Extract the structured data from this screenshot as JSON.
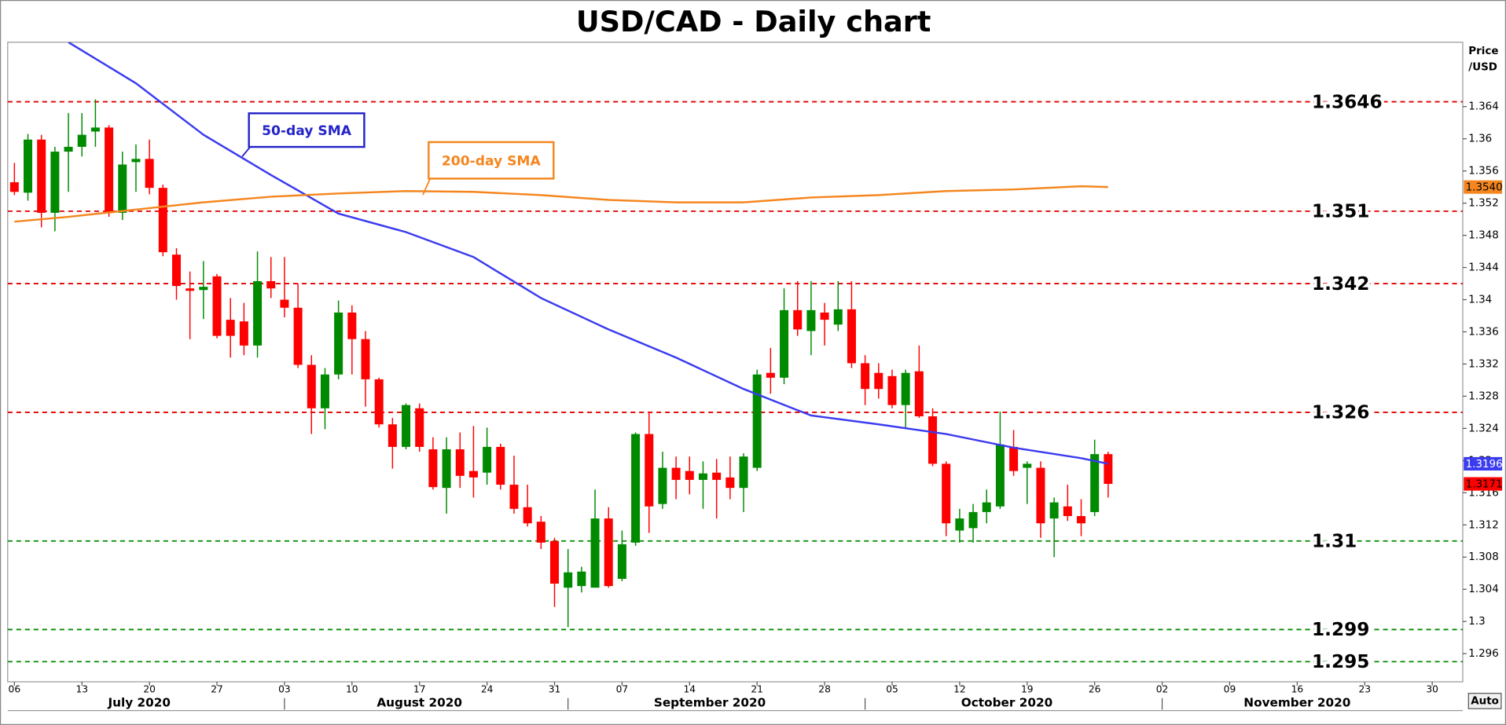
{
  "chart_data": {
    "type": "candlestick",
    "title": "USD/CAD - Daily chart",
    "y_axis_label": [
      "Price",
      "/USD"
    ],
    "auto_button": "Auto",
    "up_color": "#008a00",
    "down_color": "#ff0000",
    "x": [
      "2020-07-06",
      "2020-07-07",
      "2020-07-08",
      "2020-07-09",
      "2020-07-10",
      "2020-07-13",
      "2020-07-14",
      "2020-07-15",
      "2020-07-16",
      "2020-07-17",
      "2020-07-20",
      "2020-07-21",
      "2020-07-22",
      "2020-07-23",
      "2020-07-24",
      "2020-07-27",
      "2020-07-28",
      "2020-07-29",
      "2020-07-30",
      "2020-07-31",
      "2020-08-03",
      "2020-08-04",
      "2020-08-05",
      "2020-08-06",
      "2020-08-07",
      "2020-08-10",
      "2020-08-11",
      "2020-08-12",
      "2020-08-13",
      "2020-08-14",
      "2020-08-17",
      "2020-08-18",
      "2020-08-19",
      "2020-08-20",
      "2020-08-21",
      "2020-08-24",
      "2020-08-25",
      "2020-08-26",
      "2020-08-27",
      "2020-08-28",
      "2020-08-31",
      "2020-09-01",
      "2020-09-02",
      "2020-09-03",
      "2020-09-04",
      "2020-09-07",
      "2020-09-08",
      "2020-09-09",
      "2020-09-10",
      "2020-09-11",
      "2020-09-14",
      "2020-09-15",
      "2020-09-16",
      "2020-09-17",
      "2020-09-18",
      "2020-09-21",
      "2020-09-22",
      "2020-09-23",
      "2020-09-24",
      "2020-09-25",
      "2020-09-28",
      "2020-09-29",
      "2020-09-30",
      "2020-10-01",
      "2020-10-02",
      "2020-10-05",
      "2020-10-06",
      "2020-10-07",
      "2020-10-08",
      "2020-10-09",
      "2020-10-12",
      "2020-10-13",
      "2020-10-14",
      "2020-10-15",
      "2020-10-16",
      "2020-10-19",
      "2020-10-20",
      "2020-10-21",
      "2020-10-22",
      "2020-10-23",
      "2020-10-26",
      "2020-10-27"
    ],
    "open": [
      1.3546,
      1.3533,
      1.3599,
      1.3508,
      1.3584,
      1.359,
      1.3609,
      1.3614,
      1.3508,
      1.3571,
      1.3575,
      1.3539,
      1.3456,
      1.3414,
      1.3412,
      1.3429,
      1.3375,
      1.3373,
      1.3343,
      1.3423,
      1.34,
      1.339,
      1.3319,
      1.3265,
      1.3307,
      1.3384,
      1.3351,
      1.3301,
      1.3245,
      1.3217,
      1.3265,
      1.3214,
      1.3166,
      1.3214,
      1.3187,
      1.3185,
      1.3217,
      1.317,
      1.3142,
      1.3124,
      1.31,
      1.3042,
      1.3044,
      1.3042,
      1.3128,
      1.3053,
      1.3098,
      1.3233,
      1.3146,
      1.3191,
      1.3187,
      1.3176,
      1.3185,
      1.3179,
      1.3166,
      1.3191,
      1.3309,
      1.3303,
      1.3387,
      1.3361,
      1.3384,
      1.3369,
      1.3388,
      1.3321,
      1.3309,
      1.3305,
      1.3269,
      1.3311,
      1.3255,
      1.3196,
      1.3113,
      1.3116,
      1.3136,
      1.3143,
      1.3217,
      1.3191,
      1.3191,
      1.3128,
      1.3143,
      1.3131,
      1.3136,
      1.3208
    ],
    "high": [
      1.357,
      1.3606,
      1.3605,
      1.359,
      1.3632,
      1.3632,
      1.3649,
      1.3617,
      1.3584,
      1.3593,
      1.3599,
      1.3543,
      1.3464,
      1.3435,
      1.3448,
      1.3432,
      1.3402,
      1.3396,
      1.346,
      1.3453,
      1.3453,
      1.342,
      1.3331,
      1.3315,
      1.3399,
      1.3393,
      1.3361,
      1.3303,
      1.3253,
      1.3271,
      1.3271,
      1.3229,
      1.3229,
      1.3235,
      1.3243,
      1.3241,
      1.3221,
      1.3206,
      1.317,
      1.3131,
      1.3104,
      1.309,
      1.3068,
      1.3164,
      1.3142,
      1.3113,
      1.3235,
      1.3261,
      1.3211,
      1.3205,
      1.3205,
      1.3199,
      1.3202,
      1.3205,
      1.3209,
      1.3313,
      1.334,
      1.3414,
      1.3423,
      1.3423,
      1.3396,
      1.3423,
      1.3423,
      1.3331,
      1.3321,
      1.3313,
      1.3313,
      1.3343,
      1.3265,
      1.3199,
      1.314,
      1.3146,
      1.3164,
      1.3261,
      1.3238,
      1.3199,
      1.3199,
      1.3154,
      1.317,
      1.3152,
      1.3226,
      1.3211
    ],
    "low": [
      1.353,
      1.3523,
      1.349,
      1.3485,
      1.3534,
      1.3578,
      1.359,
      1.3503,
      1.3499,
      1.3534,
      1.3531,
      1.3454,
      1.34,
      1.3351,
      1.3376,
      1.3352,
      1.3328,
      1.3331,
      1.3328,
      1.3402,
      1.3378,
      1.3315,
      1.3233,
      1.3239,
      1.3301,
      1.3307,
      1.3267,
      1.3241,
      1.319,
      1.3214,
      1.3211,
      1.3164,
      1.3134,
      1.3166,
      1.3154,
      1.317,
      1.3164,
      1.3134,
      1.3118,
      1.309,
      1.3018,
      1.2993,
      1.3036,
      1.3042,
      1.3042,
      1.305,
      1.3094,
      1.311,
      1.314,
      1.3152,
      1.3158,
      1.314,
      1.3128,
      1.3152,
      1.3136,
      1.3187,
      1.3283,
      1.3295,
      1.3355,
      1.3331,
      1.3343,
      1.3361,
      1.3315,
      1.3269,
      1.3277,
      1.3265,
      1.3241,
      1.3253,
      1.3193,
      1.3106,
      1.3098,
      1.3098,
      1.3122,
      1.314,
      1.3181,
      1.3146,
      1.3104,
      1.308,
      1.3125,
      1.3106,
      1.3131,
      1.3154
    ],
    "close": [
      1.3534,
      1.3599,
      1.3508,
      1.3584,
      1.359,
      1.3605,
      1.3614,
      1.3508,
      1.3568,
      1.3575,
      1.3539,
      1.3459,
      1.3417,
      1.3411,
      1.3416,
      1.3355,
      1.3355,
      1.3343,
      1.3423,
      1.3414,
      1.339,
      1.3319,
      1.3265,
      1.3307,
      1.3384,
      1.3351,
      1.3301,
      1.3245,
      1.3217,
      1.3269,
      1.3217,
      1.3167,
      1.3214,
      1.3181,
      1.3179,
      1.3217,
      1.317,
      1.314,
      1.3122,
      1.3098,
      1.3047,
      1.3061,
      1.3062,
      1.3128,
      1.3044,
      1.3096,
      1.3233,
      1.3143,
      1.3191,
      1.3176,
      1.3176,
      1.3184,
      1.3176,
      1.3166,
      1.3205,
      1.3307,
      1.3303,
      1.3387,
      1.3363,
      1.3387,
      1.3375,
      1.3388,
      1.3321,
      1.3289,
      1.3289,
      1.3269,
      1.3309,
      1.3255,
      1.3196,
      1.3122,
      1.3128,
      1.3136,
      1.3148,
      1.322,
      1.3187,
      1.3196,
      1.3122,
      1.3148,
      1.3131,
      1.3122,
      1.3208,
      1.3171
    ],
    "lines": [
      {
        "name": "50-day SMA",
        "color": "#3b3bf0",
        "last_value_label": "1.3196",
        "x": [
          "2020-07-10",
          "2020-07-17",
          "2020-07-24",
          "2020-07-31",
          "2020-08-07",
          "2020-08-14",
          "2020-08-21",
          "2020-08-28",
          "2020-09-04",
          "2020-09-11",
          "2020-09-18",
          "2020-09-25",
          "2020-10-02",
          "2020-10-09",
          "2020-10-16",
          "2020-10-23",
          "2020-10-27"
        ],
        "values": [
          1.372,
          1.3669,
          1.3605,
          1.3555,
          1.3507,
          1.3484,
          1.3453,
          1.3402,
          1.3363,
          1.3328,
          1.3289,
          1.3256,
          1.3245,
          1.3233,
          1.3216,
          1.3203,
          1.3196
        ]
      },
      {
        "name": "200-day SMA",
        "color": "#f5861f",
        "last_value_label": "1.3540",
        "x": [
          "2020-07-06",
          "2020-07-10",
          "2020-07-17",
          "2020-07-24",
          "2020-07-31",
          "2020-08-07",
          "2020-08-14",
          "2020-08-21",
          "2020-08-28",
          "2020-09-04",
          "2020-09-11",
          "2020-09-18",
          "2020-09-25",
          "2020-10-02",
          "2020-10-09",
          "2020-10-16",
          "2020-10-23",
          "2020-10-27"
        ],
        "values": [
          1.3497,
          1.3503,
          1.3512,
          1.3521,
          1.3528,
          1.3532,
          1.3535,
          1.3534,
          1.353,
          1.3524,
          1.3521,
          1.3521,
          1.3527,
          1.353,
          1.3535,
          1.3537,
          1.3541,
          1.354
        ]
      }
    ],
    "levels": [
      {
        "value": 1.3646,
        "color": "#e00000"
      },
      {
        "value": 1.351,
        "color": "#e00000"
      },
      {
        "value": 1.342,
        "color": "#e00000"
      },
      {
        "value": 1.326,
        "color": "#e00000"
      },
      {
        "value": 1.31,
        "color": "#008a00"
      },
      {
        "value": 1.299,
        "color": "#008a00"
      },
      {
        "value": 1.295,
        "color": "#008a00"
      }
    ],
    "ylim": [
      1.2925,
      1.372
    ],
    "yticks": [
      1.296,
      1.3,
      1.304,
      1.308,
      1.312,
      1.316,
      1.32,
      1.324,
      1.328,
      1.332,
      1.336,
      1.34,
      1.344,
      1.348,
      1.352,
      1.356,
      1.36,
      1.364
    ],
    "xticks": [
      {
        "value": "2020-07-06",
        "label": "06"
      },
      {
        "value": "2020-07-13",
        "label": "13"
      },
      {
        "value": "2020-07-20",
        "label": "20"
      },
      {
        "value": "2020-07-27",
        "label": "27"
      },
      {
        "value": "2020-08-03",
        "label": "03"
      },
      {
        "value": "2020-08-10",
        "label": "10"
      },
      {
        "value": "2020-08-17",
        "label": "17"
      },
      {
        "value": "2020-08-24",
        "label": "24"
      },
      {
        "value": "2020-08-31",
        "label": "31"
      },
      {
        "value": "2020-09-07",
        "label": "07"
      },
      {
        "value": "2020-09-14",
        "label": "14"
      },
      {
        "value": "2020-09-21",
        "label": "21"
      },
      {
        "value": "2020-09-28",
        "label": "28"
      },
      {
        "value": "2020-10-05",
        "label": "05"
      },
      {
        "value": "2020-10-12",
        "label": "12"
      },
      {
        "value": "2020-10-19",
        "label": "19"
      },
      {
        "value": "2020-10-26",
        "label": "26"
      },
      {
        "value": "2020-11-02",
        "label": "02"
      },
      {
        "value": "2020-11-09",
        "label": "09"
      },
      {
        "value": "2020-11-16",
        "label": "16"
      },
      {
        "value": "2020-11-23",
        "label": "23"
      },
      {
        "value": "2020-11-30",
        "label": "30"
      }
    ],
    "month_labels": [
      {
        "value": "2020-07",
        "label": "July 2020"
      },
      {
        "value": "2020-08",
        "label": "August 2020"
      },
      {
        "value": "2020-09",
        "label": "September 2020"
      },
      {
        "value": "2020-10",
        "label": "October 2020"
      },
      {
        "value": "2020-11",
        "label": "November 2020"
      }
    ]
  }
}
